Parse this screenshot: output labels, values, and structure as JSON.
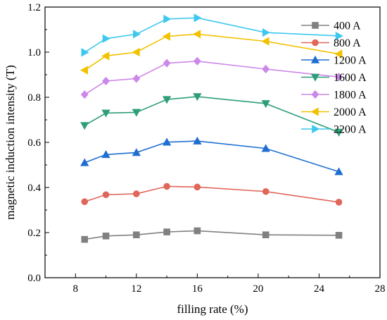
{
  "chart_data": {
    "type": "line",
    "xlabel": "filling rate (%)",
    "ylabel": "magnetic induction intensity (T)",
    "xlim": [
      6,
      28
    ],
    "ylim": [
      0.0,
      1.2
    ],
    "xticks": [
      "8",
      "12",
      "16",
      "20",
      "24",
      "28"
    ],
    "yticks": [
      "0.0",
      "0.2",
      "0.4",
      "0.6",
      "0.8",
      "1.0",
      "1.2"
    ],
    "legend_position": "top-right",
    "grid": false,
    "x": [
      8.6,
      10,
      12,
      14,
      16,
      20.5,
      25.3
    ],
    "series": [
      {
        "name": "400 A",
        "marker": "square",
        "color": "#808080",
        "values": [
          0.17,
          0.185,
          0.19,
          0.203,
          0.208,
          0.19,
          0.188
        ]
      },
      {
        "name": "800 A",
        "marker": "circle",
        "color": "#e0665a",
        "values": [
          0.337,
          0.368,
          0.372,
          0.405,
          0.402,
          0.382,
          0.335
        ]
      },
      {
        "name": "1200 A",
        "marker": "triangle-up",
        "color": "#1f6fd1",
        "values": [
          0.51,
          0.546,
          0.555,
          0.601,
          0.606,
          0.573,
          0.47
        ]
      },
      {
        "name": "1600 A",
        "marker": "triangle-down",
        "color": "#2e9e7a",
        "values": [
          0.675,
          0.73,
          0.733,
          0.79,
          0.803,
          0.772,
          0.645
        ]
      },
      {
        "name": "1800 A",
        "marker": "diamond",
        "color": "#cc88e8",
        "values": [
          0.812,
          0.872,
          0.883,
          0.951,
          0.96,
          0.925,
          0.89
        ]
      },
      {
        "name": "2000 A",
        "marker": "triangle-left",
        "color": "#f2c200",
        "values": [
          0.92,
          0.983,
          1.0,
          1.07,
          1.08,
          1.048,
          0.992
        ]
      },
      {
        "name": "2200 A",
        "marker": "triangle-right",
        "color": "#3fc8ee",
        "values": [
          0.999,
          1.06,
          1.08,
          1.147,
          1.152,
          1.087,
          1.072
        ]
      }
    ]
  }
}
